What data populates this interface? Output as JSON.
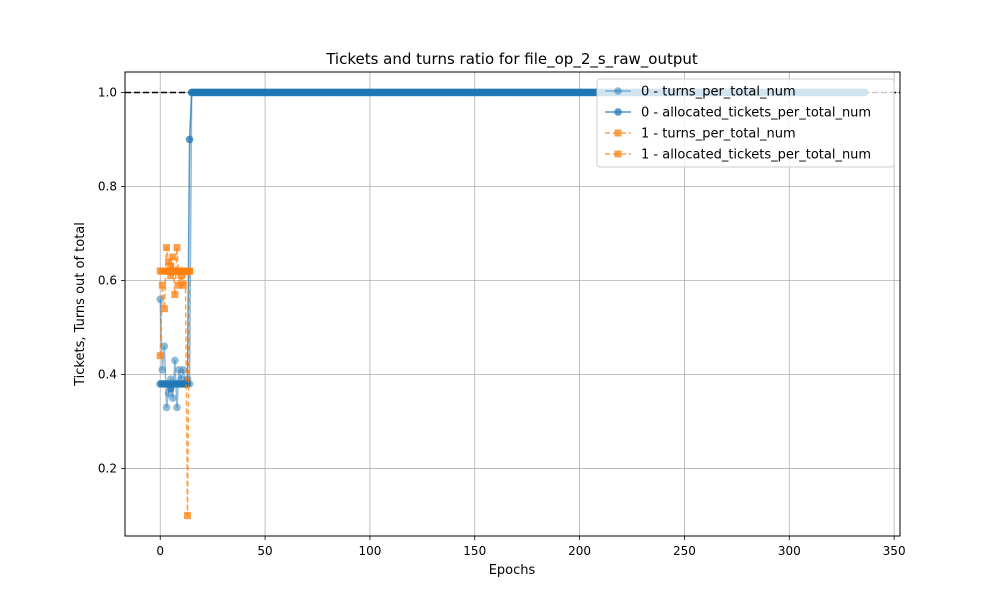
{
  "chart_data": {
    "type": "line",
    "title": "Tickets and turns ratio for file_op_2_s_raw_output",
    "xlabel": "Epochs",
    "ylabel": "Tickets, Turns out of total",
    "xlim": [
      -16.8,
      352.8
    ],
    "ylim": [
      0.0565,
      1.0435
    ],
    "xticks": [
      0,
      50,
      100,
      150,
      200,
      250,
      300,
      350
    ],
    "yticks": [
      0.2,
      0.4,
      0.6,
      0.8,
      1.0
    ],
    "xtick_labels": [
      "0",
      "50",
      "100",
      "150",
      "200",
      "250",
      "300",
      "350"
    ],
    "ytick_labels": [
      "0.2",
      "0.4",
      "0.6",
      "0.8",
      "1.0"
    ],
    "grid": true,
    "legend_position": "top-right",
    "reference_line": {
      "y": 1.0,
      "style": "dashed",
      "color": "#000000"
    },
    "series": [
      {
        "name": "0 - turns_per_total_num",
        "color": "#1f77b4",
        "marker": "circle",
        "linestyle": "solid",
        "opacity": 0.5,
        "x_start": 0,
        "x_end": 336,
        "head_values": [
          0.56,
          0.41,
          0.46,
          0.33,
          0.36,
          0.39,
          0.35,
          0.43,
          0.33,
          0.41,
          0.39,
          0.41,
          0.38,
          0.39,
          0.38,
          1.0
        ],
        "tail_value": 1.0
      },
      {
        "name": "0 - allocated_tickets_per_total_num",
        "color": "#1f77b4",
        "marker": "circle",
        "linestyle": "solid",
        "opacity": 0.75,
        "x_start": 0,
        "x_end": 336,
        "head_values": [
          0.38,
          0.38,
          0.38,
          0.38,
          0.38,
          0.37,
          0.38,
          0.38,
          0.38,
          0.38,
          0.38,
          0.38,
          0.38,
          0.38,
          0.9,
          1.0
        ],
        "tail_value": 1.0
      },
      {
        "name": "1 - turns_per_total_num",
        "color": "#ff7f0e",
        "marker": "square",
        "linestyle": "dashed",
        "opacity": 0.75,
        "x_start": 0,
        "x_end": 14,
        "head_values": [
          0.44,
          0.59,
          0.54,
          0.67,
          0.64,
          0.61,
          0.65,
          0.57,
          0.67,
          0.59,
          0.61,
          0.59,
          0.62,
          0.1,
          0.62
        ],
        "tail_value": null
      },
      {
        "name": "1 - allocated_tickets_per_total_num",
        "color": "#ff7f0e",
        "marker": "square",
        "linestyle": "dashed",
        "opacity": 0.75,
        "x_start": 0,
        "x_end": 14,
        "head_values": [
          0.62,
          0.62,
          0.62,
          0.62,
          0.62,
          0.63,
          0.62,
          0.62,
          0.62,
          0.62,
          0.62,
          0.62,
          0.62,
          0.62,
          0.62
        ],
        "tail_value": null
      }
    ]
  }
}
